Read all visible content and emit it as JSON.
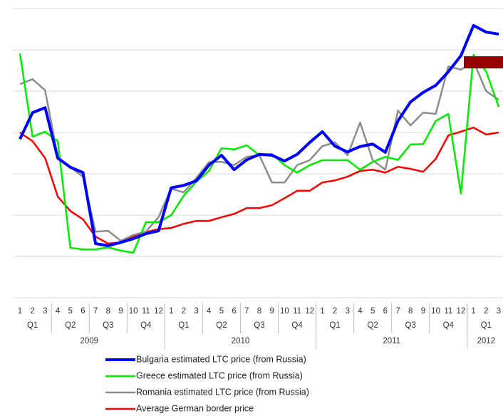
{
  "chart_data": {
    "type": "line",
    "categories": [
      "1",
      "2",
      "3",
      "4",
      "5",
      "6",
      "7",
      "8",
      "9",
      "10",
      "11",
      "12",
      "1",
      "2",
      "3",
      "4",
      "5",
      "6",
      "7",
      "8",
      "9",
      "10",
      "11",
      "12",
      "1",
      "2",
      "3",
      "4",
      "5",
      "6",
      "7",
      "8",
      "9",
      "10",
      "11",
      "12",
      "1",
      "2",
      "3"
    ],
    "quarters": [
      "Q1",
      "Q2",
      "Q3",
      "Q4",
      "Q1",
      "Q2",
      "Q3",
      "Q4",
      "Q1",
      "Q2",
      "Q3",
      "Q4",
      "Q1"
    ],
    "years": [
      "2009",
      "2010",
      "2011",
      "2012"
    ],
    "ylim": [
      0,
      7
    ],
    "yticks": [
      0,
      1,
      2,
      3,
      4,
      5,
      6,
      7
    ],
    "grid": true,
    "series": [
      {
        "name": "Bulgaria estimated LTC price (from Russia)",
        "color": "#0000ff",
        "values": [
          3.84,
          4.48,
          4.6,
          3.38,
          3.16,
          3.03,
          1.31,
          1.26,
          1.34,
          1.43,
          1.55,
          1.62,
          2.66,
          2.72,
          2.83,
          3.21,
          3.45,
          3.1,
          3.34,
          3.47,
          3.45,
          3.31,
          3.47,
          3.76,
          4.02,
          3.67,
          3.53,
          3.66,
          3.72,
          3.52,
          4.28,
          4.74,
          4.97,
          5.14,
          5.47,
          5.86,
          6.59,
          6.43,
          6.38
        ]
      },
      {
        "name": "Greece estimated LTC price (from Russia)",
        "color": "#00ee00",
        "values": [
          5.91,
          3.9,
          4.02,
          3.79,
          1.21,
          1.17,
          1.17,
          1.22,
          1.14,
          1.09,
          1.83,
          1.83,
          2.0,
          2.47,
          2.81,
          3.07,
          3.62,
          3.59,
          3.69,
          3.45,
          3.48,
          3.21,
          3.03,
          3.21,
          3.33,
          3.33,
          3.33,
          3.1,
          3.29,
          3.41,
          3.34,
          3.71,
          3.72,
          4.28,
          4.45,
          2.52,
          5.88,
          5.48,
          4.62
        ]
      },
      {
        "name": "Romania estimated LTC price (from Russia)",
        "color": "#8c8c8c",
        "values": [
          5.17,
          5.29,
          5.02,
          3.41,
          3.16,
          2.93,
          1.6,
          1.62,
          1.38,
          1.52,
          1.6,
          1.95,
          2.64,
          2.55,
          2.9,
          3.28,
          3.29,
          3.21,
          3.41,
          3.45,
          2.79,
          2.79,
          3.21,
          3.33,
          3.67,
          3.76,
          3.45,
          4.24,
          3.33,
          3.1,
          4.53,
          4.17,
          4.48,
          4.45,
          5.6,
          5.52,
          5.72,
          5.0,
          4.79
        ]
      },
      {
        "name": "Average German border price",
        "color": "#ff0000",
        "values": [
          4.0,
          3.79,
          3.38,
          2.45,
          2.1,
          1.9,
          1.48,
          1.31,
          1.34,
          1.48,
          1.59,
          1.66,
          1.69,
          1.79,
          1.86,
          1.86,
          1.95,
          2.03,
          2.17,
          2.17,
          2.24,
          2.41,
          2.59,
          2.59,
          2.79,
          2.84,
          2.93,
          3.07,
          3.1,
          3.03,
          3.17,
          3.12,
          3.05,
          3.36,
          3.93,
          4.02,
          4.12,
          3.95,
          4.0
        ]
      }
    ]
  }
}
